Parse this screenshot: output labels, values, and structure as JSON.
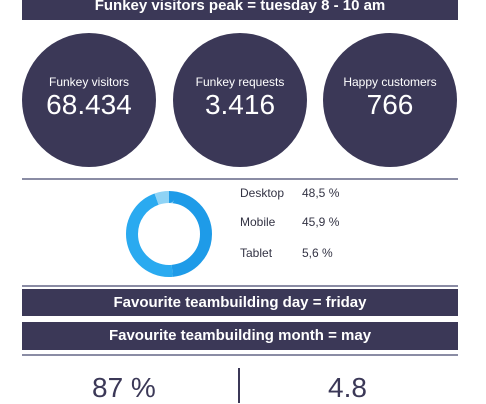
{
  "header": {
    "peak_text": "Funkey visitors peak = tuesday 8 - 10 am"
  },
  "stats": [
    {
      "label": "Funkey visitors",
      "value": "68.434"
    },
    {
      "label": "Funkey requests",
      "value": "3.416"
    },
    {
      "label": "Happy customers",
      "value": "766"
    }
  ],
  "devices": {
    "colors": {
      "desktop": "#1e9be8",
      "mobile": "#2aaaf0",
      "tablet": "#8fd3f5"
    },
    "items": [
      {
        "name": "Desktop",
        "percent_text": "48,5 %",
        "value": 48.5
      },
      {
        "name": "Mobile",
        "percent_text": "45,9 %",
        "value": 45.9
      },
      {
        "name": "Tablet",
        "percent_text": "5,6 %",
        "value": 5.6
      }
    ]
  },
  "banners": {
    "day": "Favourite teambuilding day = friday",
    "month": "Favourite teambuilding month = may"
  },
  "bottom": {
    "left_value": "87 %",
    "right_value": "4.8"
  }
}
